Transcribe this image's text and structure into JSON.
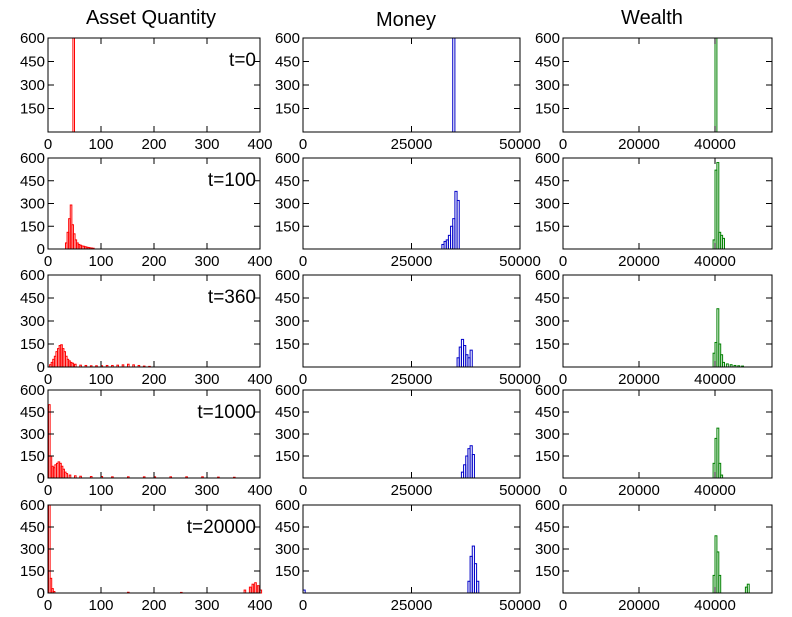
{
  "figure": {
    "column_titles": [
      "Asset Quantity",
      "Money",
      "Wealth"
    ],
    "row_labels": [
      "t=0",
      "t=100",
      "t=360",
      "t=1000",
      "t=20000"
    ]
  },
  "chart_data": [
    {
      "type": "bar",
      "panel": "asset-t0",
      "column": "Asset Quantity",
      "time_label": "t=0",
      "color": "#ff0000",
      "xlim": [
        0,
        400
      ],
      "ylim": [
        0,
        600
      ],
      "xticks": [
        0,
        100,
        200,
        300,
        400
      ],
      "yticks": [
        150,
        300,
        450,
        600
      ],
      "bins": [
        [
          47,
          600
        ]
      ]
    },
    {
      "type": "bar",
      "panel": "money-t0",
      "column": "Money",
      "time_label": "t=0",
      "color": "#0000c8",
      "xlim": [
        0,
        50000
      ],
      "ylim": [
        0,
        600
      ],
      "xticks": [
        0,
        25000,
        50000
      ],
      "yticks": [
        150,
        300,
        450,
        600
      ],
      "bins": [
        [
          34500,
          600
        ]
      ]
    },
    {
      "type": "bar",
      "panel": "wealth-t0",
      "column": "Wealth",
      "time_label": "t=0",
      "color": "#008000",
      "xlim": [
        0,
        55000
      ],
      "ylim": [
        0,
        600
      ],
      "xticks": [
        0,
        20000,
        40000
      ],
      "yticks": [
        150,
        300,
        450,
        600
      ],
      "bins": [
        [
          40000,
          600
        ]
      ]
    },
    {
      "type": "bar",
      "panel": "asset-t100",
      "column": "Asset Quantity",
      "time_label": "t=100",
      "color": "#ff0000",
      "xlim": [
        0,
        400
      ],
      "ylim": [
        0,
        600
      ],
      "xticks": [
        0,
        100,
        200,
        300,
        400
      ],
      "yticks": [
        150,
        300,
        450,
        600
      ],
      "bins": [
        [
          33,
          40
        ],
        [
          36,
          110
        ],
        [
          39,
          200
        ],
        [
          42,
          290
        ],
        [
          45,
          160
        ],
        [
          48,
          100
        ],
        [
          51,
          60
        ],
        [
          54,
          40
        ],
        [
          57,
          30
        ],
        [
          60,
          25
        ],
        [
          63,
          20
        ],
        [
          66,
          18
        ],
        [
          69,
          15
        ],
        [
          72,
          12
        ],
        [
          75,
          10
        ],
        [
          78,
          8
        ],
        [
          81,
          6
        ],
        [
          84,
          5
        ]
      ]
    },
    {
      "type": "bar",
      "panel": "money-t100",
      "column": "Money",
      "time_label": "t=100",
      "color": "#0000c8",
      "xlim": [
        0,
        50000
      ],
      "ylim": [
        0,
        600
      ],
      "xticks": [
        0,
        25000,
        50000
      ],
      "yticks": [
        150,
        300,
        450,
        600
      ],
      "bins": [
        [
          32000,
          30
        ],
        [
          32500,
          50
        ],
        [
          33000,
          60
        ],
        [
          33500,
          90
        ],
        [
          34000,
          150
        ],
        [
          34500,
          200
        ],
        [
          35000,
          380
        ],
        [
          35500,
          320
        ]
      ]
    },
    {
      "type": "bar",
      "panel": "wealth-t100",
      "column": "Wealth",
      "time_label": "t=100",
      "color": "#008000",
      "xlim": [
        0,
        55000
      ],
      "ylim": [
        0,
        600
      ],
      "xticks": [
        0,
        20000,
        40000
      ],
      "yticks": [
        150,
        300,
        450,
        600
      ],
      "bins": [
        [
          39500,
          60
        ],
        [
          40000,
          520
        ],
        [
          40500,
          570
        ],
        [
          41000,
          110
        ],
        [
          41500,
          90
        ],
        [
          42000,
          70
        ]
      ]
    },
    {
      "type": "bar",
      "panel": "asset-t360",
      "column": "Asset Quantity",
      "time_label": "t=360",
      "color": "#ff0000",
      "xlim": [
        0,
        400
      ],
      "ylim": [
        0,
        600
      ],
      "xticks": [
        0,
        100,
        200,
        300,
        400
      ],
      "yticks": [
        150,
        300,
        450,
        600
      ],
      "bins": [
        [
          3,
          15
        ],
        [
          6,
          30
        ],
        [
          9,
          50
        ],
        [
          12,
          70
        ],
        [
          15,
          100
        ],
        [
          18,
          120
        ],
        [
          21,
          140
        ],
        [
          24,
          145
        ],
        [
          27,
          120
        ],
        [
          30,
          100
        ],
        [
          33,
          70
        ],
        [
          36,
          50
        ],
        [
          39,
          40
        ],
        [
          42,
          30
        ],
        [
          45,
          25
        ],
        [
          50,
          18
        ],
        [
          60,
          12
        ],
        [
          70,
          10
        ],
        [
          80,
          8
        ],
        [
          90,
          8
        ],
        [
          100,
          8
        ],
        [
          110,
          10
        ],
        [
          120,
          10
        ],
        [
          130,
          12
        ],
        [
          140,
          14
        ],
        [
          150,
          18
        ],
        [
          160,
          14
        ],
        [
          170,
          10
        ],
        [
          180,
          6
        ],
        [
          190,
          4
        ]
      ]
    },
    {
      "type": "bar",
      "panel": "money-t360",
      "column": "Money",
      "time_label": "t=360",
      "color": "#0000c8",
      "xlim": [
        0,
        50000
      ],
      "ylim": [
        0,
        600
      ],
      "xticks": [
        0,
        25000,
        50000
      ],
      "yticks": [
        150,
        300,
        450,
        600
      ],
      "bins": [
        [
          35500,
          60
        ],
        [
          36000,
          130
        ],
        [
          36500,
          180
        ],
        [
          37000,
          140
        ],
        [
          37500,
          80
        ],
        [
          38000,
          60
        ],
        [
          38500,
          110
        ]
      ]
    },
    {
      "type": "bar",
      "panel": "wealth-t360",
      "column": "Wealth",
      "time_label": "t=360",
      "color": "#008000",
      "xlim": [
        0,
        55000
      ],
      "ylim": [
        0,
        600
      ],
      "xticks": [
        0,
        20000,
        40000
      ],
      "yticks": [
        150,
        300,
        450,
        600
      ],
      "bins": [
        [
          39500,
          90
        ],
        [
          40000,
          160
        ],
        [
          40500,
          380
        ],
        [
          41000,
          150
        ],
        [
          41500,
          80
        ],
        [
          42000,
          30
        ],
        [
          43000,
          20
        ],
        [
          44000,
          15
        ],
        [
          45000,
          10
        ],
        [
          46000,
          8
        ],
        [
          47000,
          6
        ]
      ]
    },
    {
      "type": "bar",
      "panel": "asset-t1000",
      "column": "Asset Quantity",
      "time_label": "t=1000",
      "color": "#ff0000",
      "xlim": [
        0,
        400
      ],
      "ylim": [
        0,
        600
      ],
      "xticks": [
        0,
        100,
        200,
        300,
        400
      ],
      "yticks": [
        150,
        300,
        450,
        600
      ],
      "bins": [
        [
          1,
          500
        ],
        [
          4,
          150
        ],
        [
          7,
          80
        ],
        [
          10,
          70
        ],
        [
          13,
          90
        ],
        [
          16,
          100
        ],
        [
          19,
          110
        ],
        [
          22,
          100
        ],
        [
          25,
          80
        ],
        [
          28,
          60
        ],
        [
          31,
          40
        ],
        [
          34,
          30
        ],
        [
          40,
          20
        ],
        [
          50,
          15
        ],
        [
          60,
          12
        ],
        [
          80,
          10
        ],
        [
          100,
          10
        ],
        [
          120,
          8
        ],
        [
          150,
          8
        ],
        [
          180,
          8
        ],
        [
          200,
          8
        ],
        [
          230,
          8
        ],
        [
          260,
          8
        ],
        [
          290,
          8
        ],
        [
          320,
          6
        ],
        [
          350,
          5
        ]
      ]
    },
    {
      "type": "bar",
      "panel": "money-t1000",
      "column": "Money",
      "time_label": "t=1000",
      "color": "#0000c8",
      "xlim": [
        0,
        50000
      ],
      "ylim": [
        0,
        600
      ],
      "xticks": [
        0,
        25000,
        50000
      ],
      "yticks": [
        150,
        300,
        450,
        600
      ],
      "bins": [
        [
          36500,
          40
        ],
        [
          37000,
          90
        ],
        [
          37500,
          150
        ],
        [
          38000,
          200
        ],
        [
          38500,
          220
        ],
        [
          39000,
          160
        ]
      ]
    },
    {
      "type": "bar",
      "panel": "wealth-t1000",
      "column": "Wealth",
      "time_label": "t=1000",
      "color": "#008000",
      "xlim": [
        0,
        55000
      ],
      "ylim": [
        0,
        600
      ],
      "xticks": [
        0,
        20000,
        40000
      ],
      "yticks": [
        150,
        300,
        450,
        600
      ],
      "bins": [
        [
          39500,
          100
        ],
        [
          40000,
          270
        ],
        [
          40500,
          340
        ],
        [
          41000,
          100
        ],
        [
          41500,
          20
        ]
      ]
    },
    {
      "type": "bar",
      "panel": "asset-t20000",
      "column": "Asset Quantity",
      "time_label": "t=20000",
      "color": "#ff0000",
      "xlim": [
        0,
        400
      ],
      "ylim": [
        0,
        600
      ],
      "xticks": [
        0,
        100,
        200,
        300,
        400
      ],
      "yticks": [
        150,
        300,
        450,
        600
      ],
      "bins": [
        [
          1,
          600
        ],
        [
          4,
          100
        ],
        [
          7,
          30
        ],
        [
          10,
          10
        ],
        [
          150,
          5
        ],
        [
          250,
          4
        ],
        [
          370,
          20
        ],
        [
          380,
          40
        ],
        [
          385,
          60
        ],
        [
          390,
          70
        ],
        [
          395,
          50
        ],
        [
          400,
          20
        ]
      ]
    },
    {
      "type": "bar",
      "panel": "money-t20000",
      "column": "Money",
      "time_label": "t=20000",
      "color": "#0000c8",
      "xlim": [
        0,
        50000
      ],
      "ylim": [
        0,
        600
      ],
      "xticks": [
        0,
        25000,
        50000
      ],
      "yticks": [
        150,
        300,
        450,
        600
      ],
      "bins": [
        [
          0,
          20
        ],
        [
          38000,
          80
        ],
        [
          38500,
          250
        ],
        [
          39000,
          320
        ],
        [
          39500,
          200
        ],
        [
          40000,
          80
        ]
      ]
    },
    {
      "type": "bar",
      "panel": "wealth-t20000",
      "column": "Wealth",
      "time_label": "t=20000",
      "color": "#008000",
      "xlim": [
        0,
        55000
      ],
      "ylim": [
        0,
        600
      ],
      "xticks": [
        0,
        20000,
        40000
      ],
      "yticks": [
        150,
        300,
        450,
        600
      ],
      "bins": [
        [
          39500,
          120
        ],
        [
          40000,
          390
        ],
        [
          40500,
          280
        ],
        [
          41000,
          120
        ],
        [
          48000,
          40
        ],
        [
          48500,
          60
        ]
      ]
    }
  ]
}
